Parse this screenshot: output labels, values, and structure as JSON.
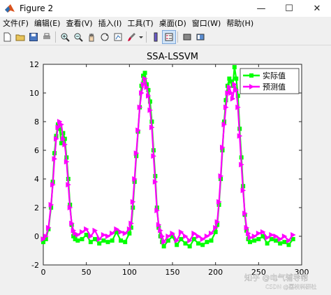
{
  "window": {
    "title": "Figure 2",
    "controls": {
      "minimize": "—",
      "maximize": "☐",
      "close": "✕"
    }
  },
  "menu": [
    "文件(F)",
    "编辑(E)",
    "查看(V)",
    "插入(I)",
    "工具(T)",
    "桌面(D)",
    "窗口(W)",
    "帮助(H)"
  ],
  "toolbar_icons": [
    "new-file-icon",
    "open-folder-icon",
    "save-icon",
    "print-icon",
    "zoom-in-icon",
    "zoom-out-icon",
    "pan-hand-icon",
    "rotate-3d-icon",
    "data-cursor-icon",
    "brush-icon",
    "link-icon",
    "colorbar-icon",
    "legend-icon",
    "hide-plot-tools-icon",
    "show-plot-tools-icon"
  ],
  "watermark": {
    "line1": "知乎 @电气辅导帮",
    "line2": "CSDN @荔枝科研社"
  },
  "chart_data": {
    "type": "line",
    "title": "SSA-LSSVM",
    "xlabel": "",
    "ylabel": "",
    "xlim": [
      0,
      300
    ],
    "ylim": [
      -2,
      12
    ],
    "xticks": [
      0,
      50,
      100,
      150,
      200,
      250,
      300
    ],
    "yticks": [
      -2,
      0,
      2,
      4,
      6,
      8,
      10,
      12
    ],
    "grid": false,
    "legend_position": "top-right",
    "series": [
      {
        "name": "实际值",
        "color": "#00ff00",
        "marker": "square",
        "x": [
          0,
          3,
          6,
          9,
          11,
          13,
          15,
          17,
          19,
          21,
          23,
          25,
          27,
          29,
          31,
          33,
          35,
          37,
          40,
          45,
          50,
          55,
          60,
          65,
          70,
          75,
          80,
          85,
          90,
          95,
          100,
          102,
          104,
          106,
          108,
          110,
          112,
          114,
          116,
          118,
          120,
          122,
          124,
          126,
          128,
          130,
          132,
          134,
          136,
          138,
          140,
          145,
          150,
          155,
          160,
          165,
          170,
          175,
          180,
          185,
          190,
          195,
          200,
          202,
          204,
          206,
          208,
          210,
          212,
          214,
          216,
          218,
          220,
          222,
          224,
          226,
          228,
          230,
          232,
          234,
          236,
          238,
          240,
          245,
          250,
          255,
          260,
          265,
          270,
          275,
          280,
          285,
          290
        ],
        "y": [
          -0.4,
          -0.2,
          0.5,
          2.0,
          3.8,
          5.8,
          7.0,
          7.8,
          7.5,
          6.5,
          7.2,
          6.8,
          5.5,
          4.0,
          2.2,
          0.8,
          0.0,
          -0.2,
          -0.3,
          -0.2,
          0.1,
          -0.4,
          -0.2,
          -0.5,
          -0.3,
          -0.4,
          -0.3,
          0.3,
          -0.3,
          -0.4,
          0.2,
          0.6,
          2.0,
          3.8,
          5.6,
          7.3,
          9.0,
          10.5,
          11.2,
          11.4,
          10.6,
          10.2,
          9.4,
          8.0,
          6.0,
          4.2,
          2.0,
          0.6,
          0.0,
          -0.4,
          -0.7,
          -0.3,
          0.0,
          -0.6,
          -0.2,
          -0.5,
          -0.7,
          -0.2,
          -0.5,
          -0.6,
          -0.4,
          -0.3,
          0.3,
          0.8,
          2.2,
          4.0,
          6.0,
          8.0,
          9.5,
          10.5,
          11.0,
          10.8,
          10.5,
          11.8,
          11.0,
          9.8,
          7.5,
          5.5,
          3.5,
          1.5,
          0.4,
          -0.2,
          -0.4,
          -0.3,
          -0.2,
          0.0,
          -0.5,
          -0.2,
          -0.3,
          -0.5,
          -0.4,
          -0.6,
          -0.2
        ]
      },
      {
        "name": "预测值",
        "color": "#ff00ff",
        "marker": "triangle-right",
        "x": [
          0,
          3,
          6,
          9,
          11,
          13,
          15,
          17,
          19,
          21,
          23,
          25,
          27,
          29,
          31,
          33,
          35,
          37,
          40,
          45,
          50,
          55,
          60,
          65,
          70,
          75,
          80,
          85,
          90,
          95,
          100,
          102,
          104,
          106,
          108,
          110,
          112,
          114,
          116,
          118,
          120,
          122,
          124,
          126,
          128,
          130,
          132,
          134,
          136,
          138,
          140,
          145,
          150,
          155,
          160,
          165,
          170,
          175,
          180,
          185,
          190,
          195,
          200,
          202,
          204,
          206,
          208,
          210,
          212,
          214,
          216,
          218,
          220,
          222,
          224,
          226,
          228,
          230,
          232,
          234,
          236,
          238,
          240,
          245,
          250,
          255,
          260,
          265,
          270,
          275,
          280,
          285,
          290
        ],
        "y": [
          -0.2,
          0.0,
          0.6,
          2.2,
          3.6,
          5.4,
          6.8,
          7.6,
          8.0,
          7.8,
          6.8,
          6.4,
          5.2,
          3.6,
          2.0,
          0.9,
          0.4,
          0.2,
          0.1,
          0.3,
          0.5,
          0.0,
          0.4,
          -0.2,
          0.1,
          0.0,
          0.2,
          0.5,
          0.3,
          0.2,
          0.5,
          0.9,
          2.4,
          4.0,
          5.8,
          7.4,
          9.0,
          10.0,
          10.6,
          11.0,
          10.4,
          9.8,
          8.8,
          7.6,
          5.6,
          3.8,
          1.8,
          0.8,
          0.4,
          0.0,
          -0.4,
          0.0,
          0.2,
          -0.3,
          0.3,
          0.0,
          -0.3,
          0.2,
          0.0,
          -0.2,
          0.0,
          0.2,
          0.6,
          1.0,
          2.4,
          4.2,
          6.2,
          7.8,
          9.0,
          10.0,
          10.4,
          10.0,
          9.6,
          10.6,
          10.2,
          9.0,
          7.0,
          5.0,
          3.2,
          1.6,
          0.6,
          0.2,
          -0.1,
          0.0,
          0.2,
          0.3,
          -0.1,
          0.1,
          0.0,
          -0.2,
          0.0,
          -0.3,
          0.1
        ]
      }
    ]
  }
}
